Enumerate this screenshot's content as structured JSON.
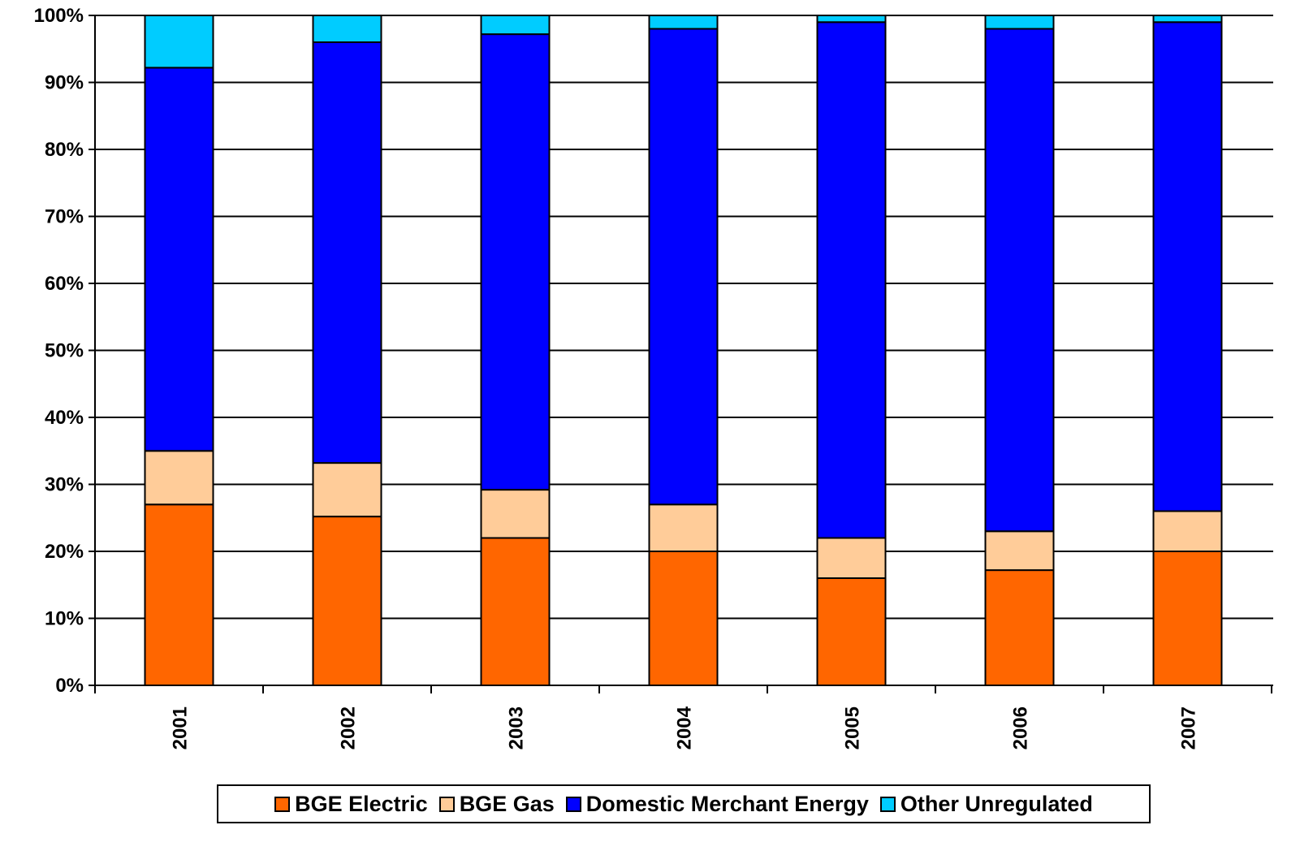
{
  "chart_data": {
    "type": "bar",
    "stacked": true,
    "categories": [
      "2001",
      "2002",
      "2003",
      "2004",
      "2005",
      "2006",
      "2007"
    ],
    "series": [
      {
        "name": "BGE Electric",
        "color": "#FF6600",
        "values": [
          27,
          25.2,
          22,
          20,
          16,
          17.2,
          20
        ]
      },
      {
        "name": "BGE Gas",
        "color": "#FFCC99",
        "values": [
          8,
          8,
          7.2,
          7,
          6,
          5.8,
          6
        ]
      },
      {
        "name": "Domestic Merchant Energy",
        "color": "#0000FF",
        "values": [
          57.2,
          62.8,
          68,
          71,
          77,
          75,
          73
        ]
      },
      {
        "name": "Other Unregulated",
        "color": "#00CCFF",
        "values": [
          7.8,
          4,
          2.8,
          2,
          1,
          2,
          1
        ]
      }
    ],
    "yticks": [
      "0%",
      "10%",
      "20%",
      "30%",
      "40%",
      "50%",
      "60%",
      "70%",
      "80%",
      "90%",
      "100%"
    ],
    "ylim": [
      0,
      100
    ],
    "grid": true,
    "legend_position": "bottom"
  }
}
